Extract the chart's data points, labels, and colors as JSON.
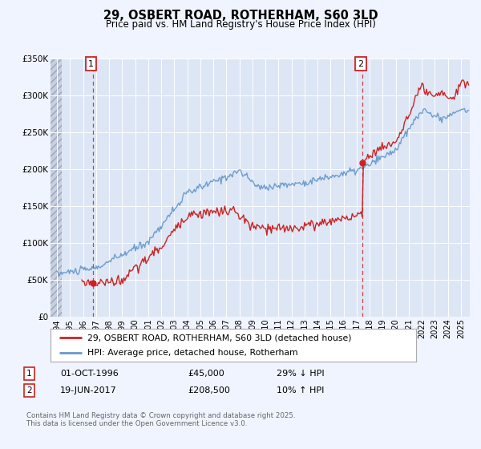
{
  "title": "29, OSBERT ROAD, ROTHERHAM, S60 3LD",
  "subtitle": "Price paid vs. HM Land Registry's House Price Index (HPI)",
  "background_color": "#f0f4ff",
  "plot_bg_color": "#dde6f5",
  "grid_color": "#ffffff",
  "hpi_color": "#6699cc",
  "price_color": "#cc2222",
  "marker_color": "#cc2222",
  "vline_color": "#cc2222",
  "ylim": [
    0,
    350000
  ],
  "yticks": [
    0,
    50000,
    100000,
    150000,
    200000,
    250000,
    300000,
    350000
  ],
  "ytick_labels": [
    "£0",
    "£50K",
    "£100K",
    "£150K",
    "£200K",
    "£250K",
    "£300K",
    "£350K"
  ],
  "xlim_start": 1993.5,
  "xlim_end": 2025.7,
  "xticks": [
    1994,
    1995,
    1996,
    1997,
    1998,
    1999,
    2000,
    2001,
    2002,
    2003,
    2004,
    2005,
    2006,
    2007,
    2008,
    2009,
    2010,
    2011,
    2012,
    2013,
    2014,
    2015,
    2016,
    2017,
    2018,
    2019,
    2020,
    2021,
    2022,
    2023,
    2024,
    2025
  ],
  "legend_label_price": "29, OSBERT ROAD, ROTHERHAM, S60 3LD (detached house)",
  "legend_label_hpi": "HPI: Average price, detached house, Rotherham",
  "event1_label": "1",
  "event1_date": "01-OCT-1996",
  "event1_price": "£45,000",
  "event1_hpi": "29% ↓ HPI",
  "event1_x": 1996.75,
  "event1_y": 45000,
  "event2_label": "2",
  "event2_date": "19-JUN-2017",
  "event2_price": "£208,500",
  "event2_hpi": "10% ↑ HPI",
  "event2_x": 2017.46,
  "event2_y": 208500,
  "footer": "Contains HM Land Registry data © Crown copyright and database right 2025.\nThis data is licensed under the Open Government Licence v3.0.",
  "hatch_end": 1994.35,
  "hpi_start_year": 1994.0,
  "price_start_year": 1995.9
}
